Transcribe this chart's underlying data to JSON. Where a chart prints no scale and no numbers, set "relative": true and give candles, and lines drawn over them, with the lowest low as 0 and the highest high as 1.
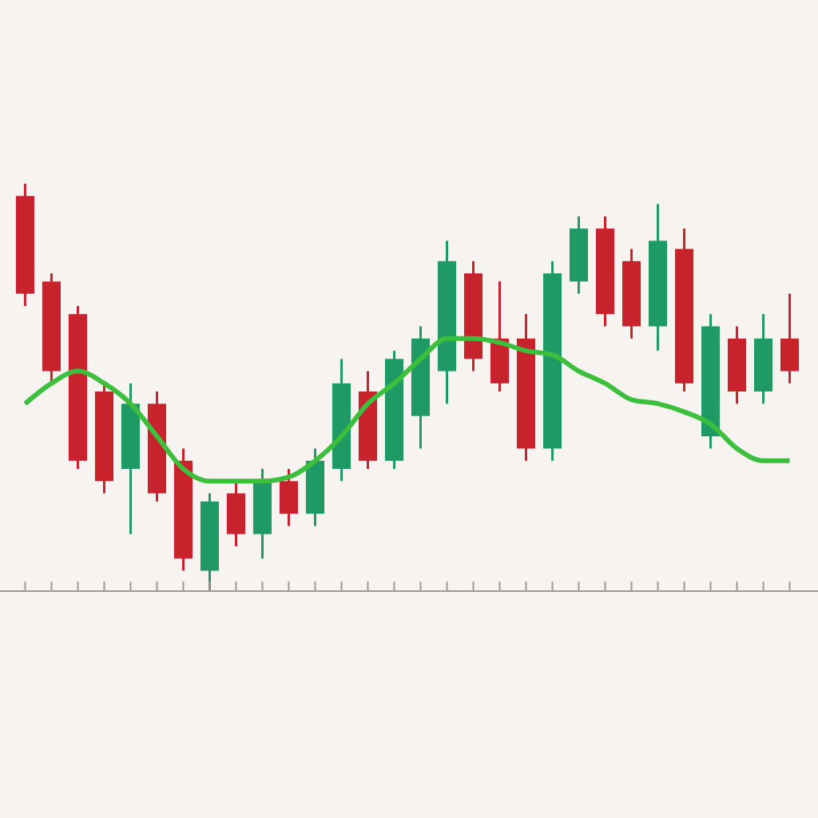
{
  "chart_data": {
    "type": "candlestick",
    "relative": true,
    "categories": [
      null,
      null,
      null,
      null,
      null,
      null,
      null,
      null,
      null,
      null,
      null,
      null,
      null,
      null,
      null,
      null,
      null,
      null,
      null,
      null,
      null,
      null,
      null,
      null,
      null,
      null,
      null,
      null,
      null,
      null
    ],
    "ohlc": [
      [
        0.97,
        1,
        0.7,
        0.73
      ],
      [
        0.76,
        0.78,
        0.51,
        0.54
      ],
      [
        0.68,
        0.7,
        0.3,
        0.32
      ],
      [
        0.49,
        0.51,
        0.24,
        0.27
      ],
      [
        0.3,
        0.51,
        0.14,
        0.46
      ],
      [
        0.46,
        0.49,
        0.22,
        0.24
      ],
      [
        0.32,
        0.35,
        0.05,
        0.08
      ],
      [
        0.05,
        0.24,
        0,
        0.22
      ],
      [
        0.24,
        0.27,
        0.11,
        0.14
      ],
      [
        0.14,
        0.3,
        0.08,
        0.27
      ],
      [
        0.27,
        0.3,
        0.16,
        0.19
      ],
      [
        0.19,
        0.35,
        0.16,
        0.32
      ],
      [
        0.3,
        0.57,
        0.27,
        0.51
      ],
      [
        0.49,
        0.54,
        0.3,
        0.32
      ],
      [
        0.32,
        0.59,
        0.3,
        0.57
      ],
      [
        0.43,
        0.65,
        0.35,
        0.62
      ],
      [
        0.54,
        0.86,
        0.46,
        0.81
      ],
      [
        0.78,
        0.81,
        0.54,
        0.57
      ],
      [
        0.62,
        0.76,
        0.49,
        0.51
      ],
      [
        0.62,
        0.68,
        0.32,
        0.35
      ],
      [
        0.35,
        0.81,
        0.32,
        0.78
      ],
      [
        0.76,
        0.92,
        0.73,
        0.89
      ],
      [
        0.89,
        0.92,
        0.65,
        0.68
      ],
      [
        0.81,
        0.84,
        0.62,
        0.65
      ],
      [
        0.65,
        0.95,
        0.59,
        0.86
      ],
      [
        0.84,
        0.89,
        0.49,
        0.51
      ],
      [
        0.38,
        0.68,
        0.35,
        0.65
      ],
      [
        0.62,
        0.65,
        0.46,
        0.49
      ],
      [
        0.49,
        0.68,
        0.46,
        0.62
      ],
      [
        0.62,
        0.73,
        0.51,
        0.54
      ]
    ],
    "colors": [
      "#c8232c",
      "#c8232c",
      "#c8232c",
      "#c8232c",
      "#1f9a64",
      "#c8232c",
      "#c8232c",
      "#1f9a64",
      "#c8232c",
      "#1f9a64",
      "#c8232c",
      "#1f9a64",
      "#1f9a64",
      "#c8232c",
      "#1f9a64",
      "#1f9a64",
      "#1f9a64",
      "#c8232c",
      "#c8232c",
      "#c8232c",
      "#1f9a64",
      "#1f9a64",
      "#c8232c",
      "#c8232c",
      "#1f9a64",
      "#c8232c",
      "#1f9a64",
      "#c8232c",
      "#1f9a64",
      "#c8232c"
    ],
    "series": [
      {
        "type": "line",
        "color": "#3cbf3c",
        "values": [
          0.46,
          0.51,
          0.54,
          0.51,
          0.46,
          0.38,
          0.3,
          0.27,
          0.27,
          0.27,
          0.28,
          0.32,
          0.38,
          0.46,
          0.51,
          0.57,
          0.62,
          0.62,
          0.61,
          0.59,
          0.58,
          0.54,
          0.51,
          0.47,
          0.46,
          0.44,
          0.41,
          0.35,
          0.32,
          0.32
        ]
      }
    ]
  }
}
